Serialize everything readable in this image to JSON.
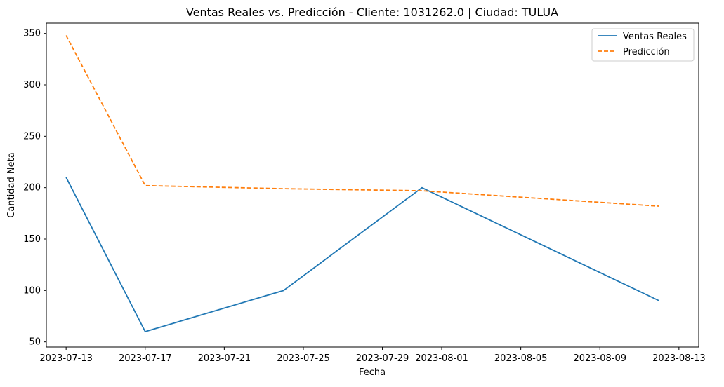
{
  "chart_data": {
    "type": "line",
    "title": "Ventas Reales vs. Predicción - Cliente: 1031262.0 | Ciudad: TULUA",
    "xlabel": "Fecha",
    "ylabel": "Cantidad Neta",
    "x_axis_type": "date",
    "xlim": [
      "2023-07-12",
      "2023-08-14"
    ],
    "ylim": [
      45,
      360
    ],
    "x_ticks": [
      "2023-07-13",
      "2023-07-17",
      "2023-07-21",
      "2023-07-25",
      "2023-07-29",
      "2023-08-01",
      "2023-08-05",
      "2023-08-09",
      "2023-08-13"
    ],
    "y_ticks": [
      50,
      100,
      150,
      200,
      250,
      300,
      350
    ],
    "grid": false,
    "legend_position": "top-right",
    "series": [
      {
        "name": "Ventas Reales",
        "color": "#1f77b4",
        "style": "solid",
        "x": [
          "2023-07-13",
          "2023-07-17",
          "2023-07-24",
          "2023-07-31",
          "2023-08-12"
        ],
        "y": [
          210,
          60,
          100,
          200,
          90
        ]
      },
      {
        "name": "Predicción",
        "color": "#ff7f0e",
        "style": "dashed",
        "x": [
          "2023-07-13",
          "2023-07-17",
          "2023-07-24",
          "2023-07-31",
          "2023-08-12"
        ],
        "y": [
          348,
          202,
          199,
          197,
          182
        ]
      }
    ]
  }
}
